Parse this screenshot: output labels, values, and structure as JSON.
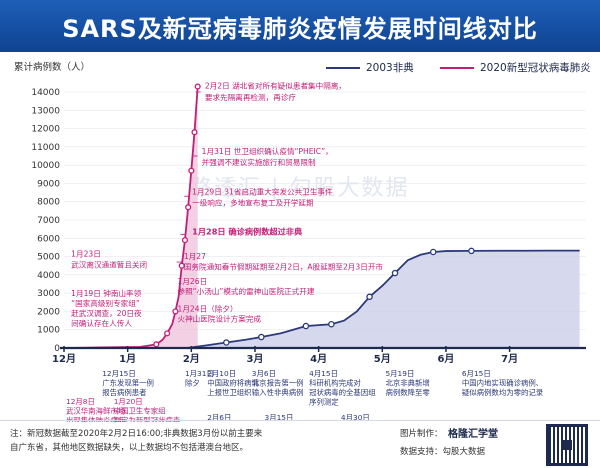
{
  "header": {
    "title": "SARS及新冠病毒肺炎疫情发展时间线对比"
  },
  "legend": {
    "sars": "2003非典",
    "covid": "2020新型冠状病毒肺炎"
  },
  "colors": {
    "header": "#1e5fb8",
    "sars": "#2c3a7a",
    "covid": "#c21d78",
    "sars_fill": "#ccd0e8",
    "covid_fill": "#efc0da",
    "axis": "#1d2a4d",
    "sars_text": "#2c3a7a",
    "covid_text": "#c21d78"
  },
  "watermark": "路透汇 | 勾股大数据",
  "chart_data": {
    "type": "line",
    "ylabel": "累计病例数（人）",
    "ylim": [
      0,
      14000
    ],
    "yticks": [
      "0",
      "1000",
      "2000",
      "3000",
      "4000",
      "5000",
      "6000",
      "7000",
      "8000",
      "9000",
      "10000",
      "11000",
      "12000",
      "13000",
      "14000"
    ],
    "xlim": [
      0,
      8.2
    ],
    "xticks": [
      {
        "x": 0.0,
        "label": "12月"
      },
      {
        "x": 1.0,
        "label": "1月"
      },
      {
        "x": 2.0,
        "label": "2月"
      },
      {
        "x": 3.0,
        "label": "3月"
      },
      {
        "x": 4.0,
        "label": "4月"
      },
      {
        "x": 5.0,
        "label": "5月"
      },
      {
        "x": 6.0,
        "label": "6月"
      },
      {
        "x": 7.0,
        "label": "7月"
      }
    ],
    "series": [
      {
        "name": "2003非典",
        "color": "#2c3a7a",
        "x": [
          1.93,
          2.25,
          2.55,
          2.85,
          3.1,
          3.4,
          3.6,
          3.8,
          4.0,
          4.2,
          4.4,
          4.6,
          4.8,
          5.0,
          5.2,
          5.4,
          5.6,
          5.8,
          6.0,
          6.4,
          6.8,
          7.2,
          7.6,
          8.1
        ],
        "y": [
          0,
          150,
          300,
          450,
          600,
          800,
          1000,
          1200,
          1250,
          1300,
          1500,
          2000,
          2800,
          3400,
          4100,
          4800,
          5100,
          5250,
          5300,
          5310,
          5320,
          5320,
          5325,
          5327
        ]
      },
      {
        "name": "2020新型冠状病毒肺炎",
        "color": "#c21d78",
        "x": [
          0.0,
          0.3,
          0.6,
          0.9,
          1.2,
          1.45,
          1.55,
          1.62,
          1.7,
          1.75,
          1.8,
          1.85,
          1.9,
          1.95,
          2.0,
          2.05,
          2.1
        ],
        "y": [
          0,
          10,
          30,
          45,
          60,
          200,
          450,
          800,
          1300,
          2000,
          2800,
          4500,
          5900,
          7700,
          9700,
          11800,
          14300
        ]
      }
    ],
    "covid_annotations": [
      {
        "text": "2月2日 湖北省对所有疑似患者集中隔离，",
        "x": 2.15,
        "y": 14200
      },
      {
        "text": "要求先隔离再检测，再诊疗",
        "x": 2.15,
        "y": 13550
      },
      {
        "text": "1月31日 世卫组织确认疫情“PHEIC”，",
        "x": 2.1,
        "y": 10600
      },
      {
        "text": "并强调不建议实施旅行和贸易限制",
        "x": 2.1,
        "y": 10000
      },
      {
        "text": "1月29日 31省启动重大突发公共卫生事件",
        "x": 1.95,
        "y": 8400
      },
      {
        "text": "一级响应，多地宣布复工及开学延期",
        "x": 1.95,
        "y": 7800
      },
      {
        "text": "1月28日 确诊病例数超过非典",
        "x": 1.95,
        "y": 6200
      },
      {
        "text": "1月27",
        "x": 1.82,
        "y": 4880
      },
      {
        "text": "国务院通知春节假期延期至2月2日，A股延期至2月3日开市",
        "x": 1.82,
        "y": 4300
      },
      {
        "text": "1月23日",
        "x": 0.05,
        "y": 5000
      },
      {
        "text": "武汉离汉通道暂且关闭",
        "x": 0.05,
        "y": 4400
      },
      {
        "text": "1月26日",
        "x": 1.72,
        "y": 3500
      },
      {
        "text": "参照“小汤山”模式的雷神山医院正式开建",
        "x": 1.72,
        "y": 2950
      },
      {
        "text": "1月19日 钟南山率领",
        "x": 0.05,
        "y": 2850
      },
      {
        "text": "“国家高级别专家组”",
        "x": 0.05,
        "y": 2300
      },
      {
        "text": "赶武汉调查，20日夜",
        "x": 0.05,
        "y": 1750
      },
      {
        "text": "间确认存在人传人",
        "x": 0.05,
        "y": 1200
      },
      {
        "text": "1月24日（除夕）",
        "x": 1.72,
        "y": 2000
      },
      {
        "text": "火神山医院设计方案完成",
        "x": 1.72,
        "y": 1450
      }
    ],
    "sars_annotations": [
      {
        "text": "12月15日",
        "col": 0.6,
        "row": 0
      },
      {
        "text": "广东发现第一例",
        "col": 0.6,
        "row": 1
      },
      {
        "text": "报告病例患者",
        "col": 0.6,
        "row": 2
      },
      {
        "text": "1月31日",
        "col": 1.9,
        "row": 0
      },
      {
        "text": "除夕",
        "col": 1.9,
        "row": 1
      },
      {
        "text": "2月10日",
        "col": 2.25,
        "row": 0
      },
      {
        "text": "中国政府将病情",
        "col": 2.25,
        "row": 1
      },
      {
        "text": "上报世卫组织",
        "col": 2.25,
        "row": 2
      },
      {
        "text": "3月6日",
        "col": 2.95,
        "row": 0
      },
      {
        "text": "北京报告第一例",
        "col": 2.95,
        "row": 1
      },
      {
        "text": "输入性非典病例",
        "col": 2.95,
        "row": 2
      },
      {
        "text": "4月15日",
        "col": 3.85,
        "row": 0
      },
      {
        "text": "科研机构完成对",
        "col": 3.85,
        "row": 1
      },
      {
        "text": "冠状病毒的全基因组",
        "col": 3.85,
        "row": 2
      },
      {
        "text": "序列测定",
        "col": 3.85,
        "row": 3
      },
      {
        "text": "5月19日",
        "col": 5.05,
        "row": 0
      },
      {
        "text": "北京非典新增",
        "col": 5.05,
        "row": 1
      },
      {
        "text": "病例数降至零",
        "col": 5.05,
        "row": 2
      },
      {
        "text": "6月15日",
        "col": 6.25,
        "row": 0
      },
      {
        "text": "中国内地实现确诊病例、",
        "col": 6.25,
        "row": 1
      },
      {
        "text": "疑似病例数均为零的记录",
        "col": 6.25,
        "row": 2
      }
    ],
    "lower_annotations_covid": [
      {
        "text": "12月8日",
        "col": 0.0,
        "row": 0
      },
      {
        "text": "武汉华南海鲜市场",
        "col": 0.0,
        "row": 1
      },
      {
        "text": "出现集体肺炎病症",
        "col": 0.0,
        "row": 2
      },
      {
        "text": "1月20日",
        "col": 0.75,
        "row": 0
      },
      {
        "text": "中国卫生专家组",
        "col": 0.75,
        "row": 1
      },
      {
        "text": "判定为新型冠状病毒",
        "col": 0.75,
        "row": 2
      }
    ],
    "lower_annotations_sars": [
      {
        "text": "2月6日",
        "col": 2.25,
        "row": 0
      },
      {
        "text": "广东发现病例218例",
        "col": 2.25,
        "row": 1
      },
      {
        "text": "新增病例增长",
        "col": 2.25,
        "row": 2
      },
      {
        "text": "3月15日",
        "col": 3.15,
        "row": 0
      },
      {
        "text": "疫情扩散至东南亚、",
        "col": 3.15,
        "row": 1
      },
      {
        "text": "澳洲、欧洲及北美",
        "col": 3.15,
        "row": 2
      },
      {
        "text": "4月30日",
        "col": 4.35,
        "row": 0
      },
      {
        "text": "防治非典专门医院",
        "col": 4.35,
        "row": 1
      },
      {
        "text": "小汤山医院启用",
        "col": 4.35,
        "row": 2
      }
    ]
  },
  "footer": {
    "note1": "注：新冠数据截至2020年2月2日16:00;非典数据3月份以前主要来",
    "note2": "自广东省，其他地区数据缺失，以上数据均不包括港澳台地区。",
    "credit1": "图片制作：",
    "credit2": "数据支持：勾股大数据",
    "brand": "格隆汇学堂"
  }
}
